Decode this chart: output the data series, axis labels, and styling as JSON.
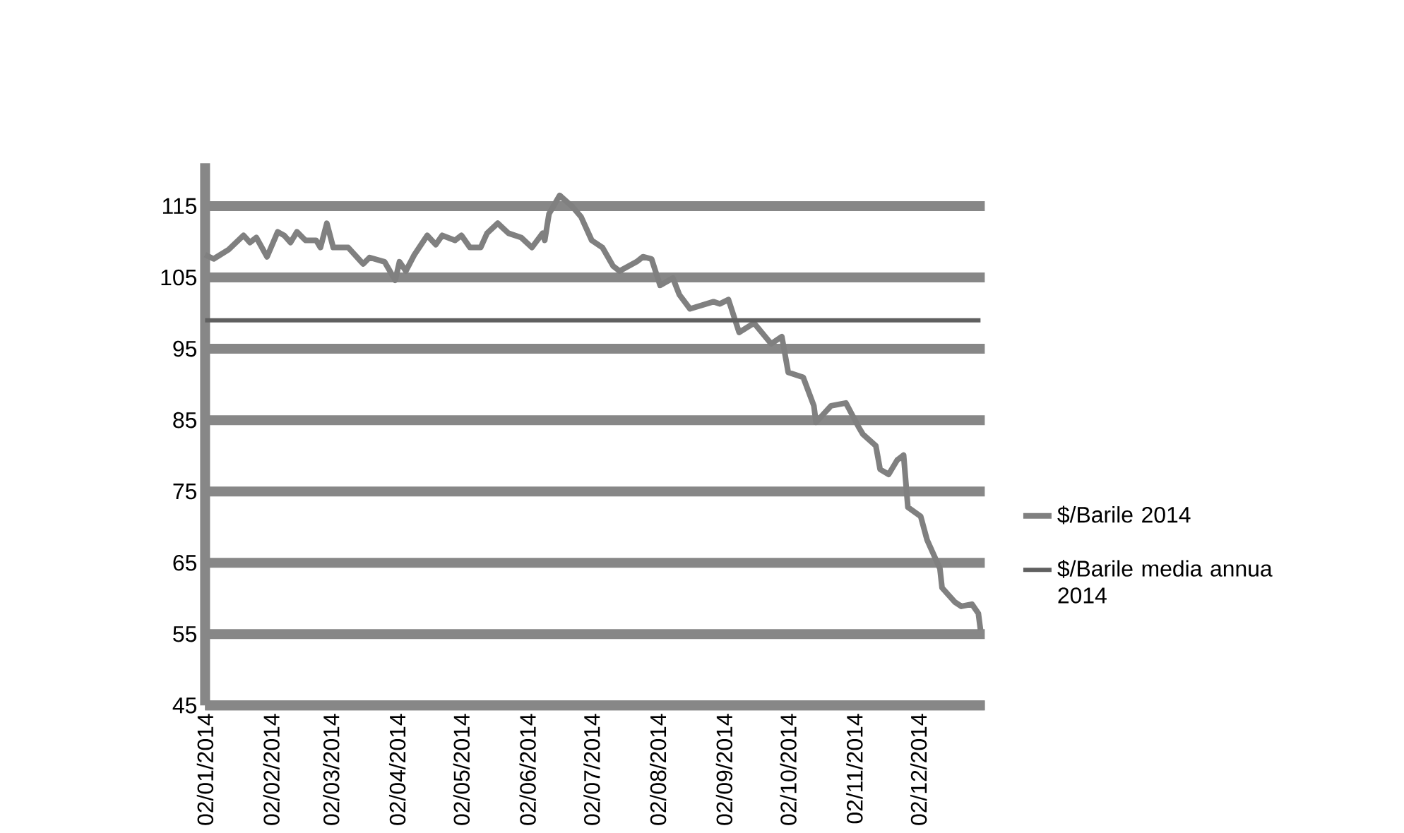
{
  "chart_data": {
    "type": "line",
    "xlim": [
      "2014-01-02",
      "2015-01-02"
    ],
    "xticks": [
      {
        "value": "2014-01-02",
        "label": "02/01/2014"
      },
      {
        "value": "2014-02-02",
        "label": "02/02/2014"
      },
      {
        "value": "2014-03-02",
        "label": "02/03/2014"
      },
      {
        "value": "2014-04-02",
        "label": "02/04/2014"
      },
      {
        "value": "2014-05-02",
        "label": "02/05/2014"
      },
      {
        "value": "2014-06-02",
        "label": "02/06/2014"
      },
      {
        "value": "2014-07-02",
        "label": "02/07/2014"
      },
      {
        "value": "2014-08-02",
        "label": "02/08/2014"
      },
      {
        "value": "2014-09-02",
        "label": "02/09/2014"
      },
      {
        "value": "2014-10-02",
        "label": "02/10/2014"
      },
      {
        "value": "2014-11-02",
        "label": "02/11/2014"
      },
      {
        "value": "2014-12-02",
        "label": "02/12/2014"
      }
    ],
    "ylim": [
      45,
      121
    ],
    "yticks": [
      45,
      55,
      65,
      75,
      85,
      95,
      105,
      115
    ],
    "grid": "y",
    "legend": "right",
    "marker": "none",
    "line_style": "solid",
    "series": [
      {
        "name": "$/Barile 2014",
        "color": "#808080",
        "x": [
          "2014-01-02",
          "2014-01-06",
          "2014-01-13",
          "2014-01-20",
          "2014-01-23",
          "2014-01-26",
          "2014-01-31",
          "2014-02-05",
          "2014-02-08",
          "2014-02-11",
          "2014-02-14",
          "2014-02-18",
          "2014-02-23",
          "2014-02-25",
          "2014-02-28",
          "2014-03-03",
          "2014-03-10",
          "2014-03-17",
          "2014-03-20",
          "2014-03-27",
          "2014-04-01",
          "2014-04-03",
          "2014-04-06",
          "2014-04-10",
          "2014-04-16",
          "2014-04-20",
          "2014-04-23",
          "2014-04-29",
          "2014-05-02",
          "2014-05-06",
          "2014-05-11",
          "2014-05-14",
          "2014-05-19",
          "2014-05-24",
          "2014-05-30",
          "2014-06-04",
          "2014-06-09",
          "2014-06-10",
          "2014-06-12",
          "2014-06-17",
          "2014-06-23",
          "2014-06-27",
          "2014-07-02",
          "2014-07-07",
          "2014-07-12",
          "2014-07-15",
          "2014-07-23",
          "2014-07-26",
          "2014-07-30",
          "2014-08-03",
          "2014-08-09",
          "2014-08-12",
          "2014-08-17",
          "2014-08-28",
          "2014-08-31",
          "2014-09-04",
          "2014-09-09",
          "2014-09-16",
          "2014-09-24",
          "2014-09-29",
          "2014-10-02",
          "2014-10-09",
          "2014-10-14",
          "2014-10-15",
          "2014-10-22",
          "2014-10-29",
          "2014-11-04",
          "2014-11-06",
          "2014-11-12",
          "2014-11-14",
          "2014-11-18",
          "2014-11-22",
          "2014-11-25",
          "2014-11-27",
          "2014-12-03",
          "2014-12-06",
          "2014-12-12",
          "2014-12-13",
          "2014-12-19",
          "2014-12-22",
          "2014-12-27",
          "2014-12-30",
          "2014-12-31"
        ],
        "values": [
          108.2,
          107.6,
          108.9,
          110.9,
          109.9,
          110.6,
          107.9,
          111.4,
          110.9,
          109.9,
          111.4,
          110.2,
          110.2,
          109.2,
          112.6,
          109.2,
          109.2,
          106.9,
          107.8,
          107.2,
          104.6,
          107.2,
          105.9,
          108.2,
          110.9,
          109.6,
          110.9,
          110.2,
          110.9,
          109.2,
          109.2,
          111.2,
          112.6,
          111.2,
          110.6,
          109.2,
          111.2,
          110.2,
          113.9,
          116.5,
          114.9,
          113.5,
          110.2,
          109.2,
          106.6,
          105.9,
          107.2,
          107.9,
          107.6,
          103.9,
          104.9,
          102.6,
          100.6,
          101.6,
          101.3,
          101.9,
          97.3,
          98.6,
          95.7,
          96.7,
          91.7,
          91.0,
          87.0,
          84.7,
          87.0,
          87.4,
          84.0,
          83.0,
          81.4,
          78.1,
          77.4,
          79.4,
          80.1,
          72.8,
          71.5,
          68.2,
          64.2,
          61.5,
          59.5,
          58.9,
          59.2,
          57.9,
          55.6
        ]
      },
      {
        "name": "$/Barile media annua 2014",
        "color": "#606060",
        "x": [
          "2014-01-02",
          "2014-12-31"
        ],
        "values": [
          99,
          99
        ]
      }
    ]
  }
}
